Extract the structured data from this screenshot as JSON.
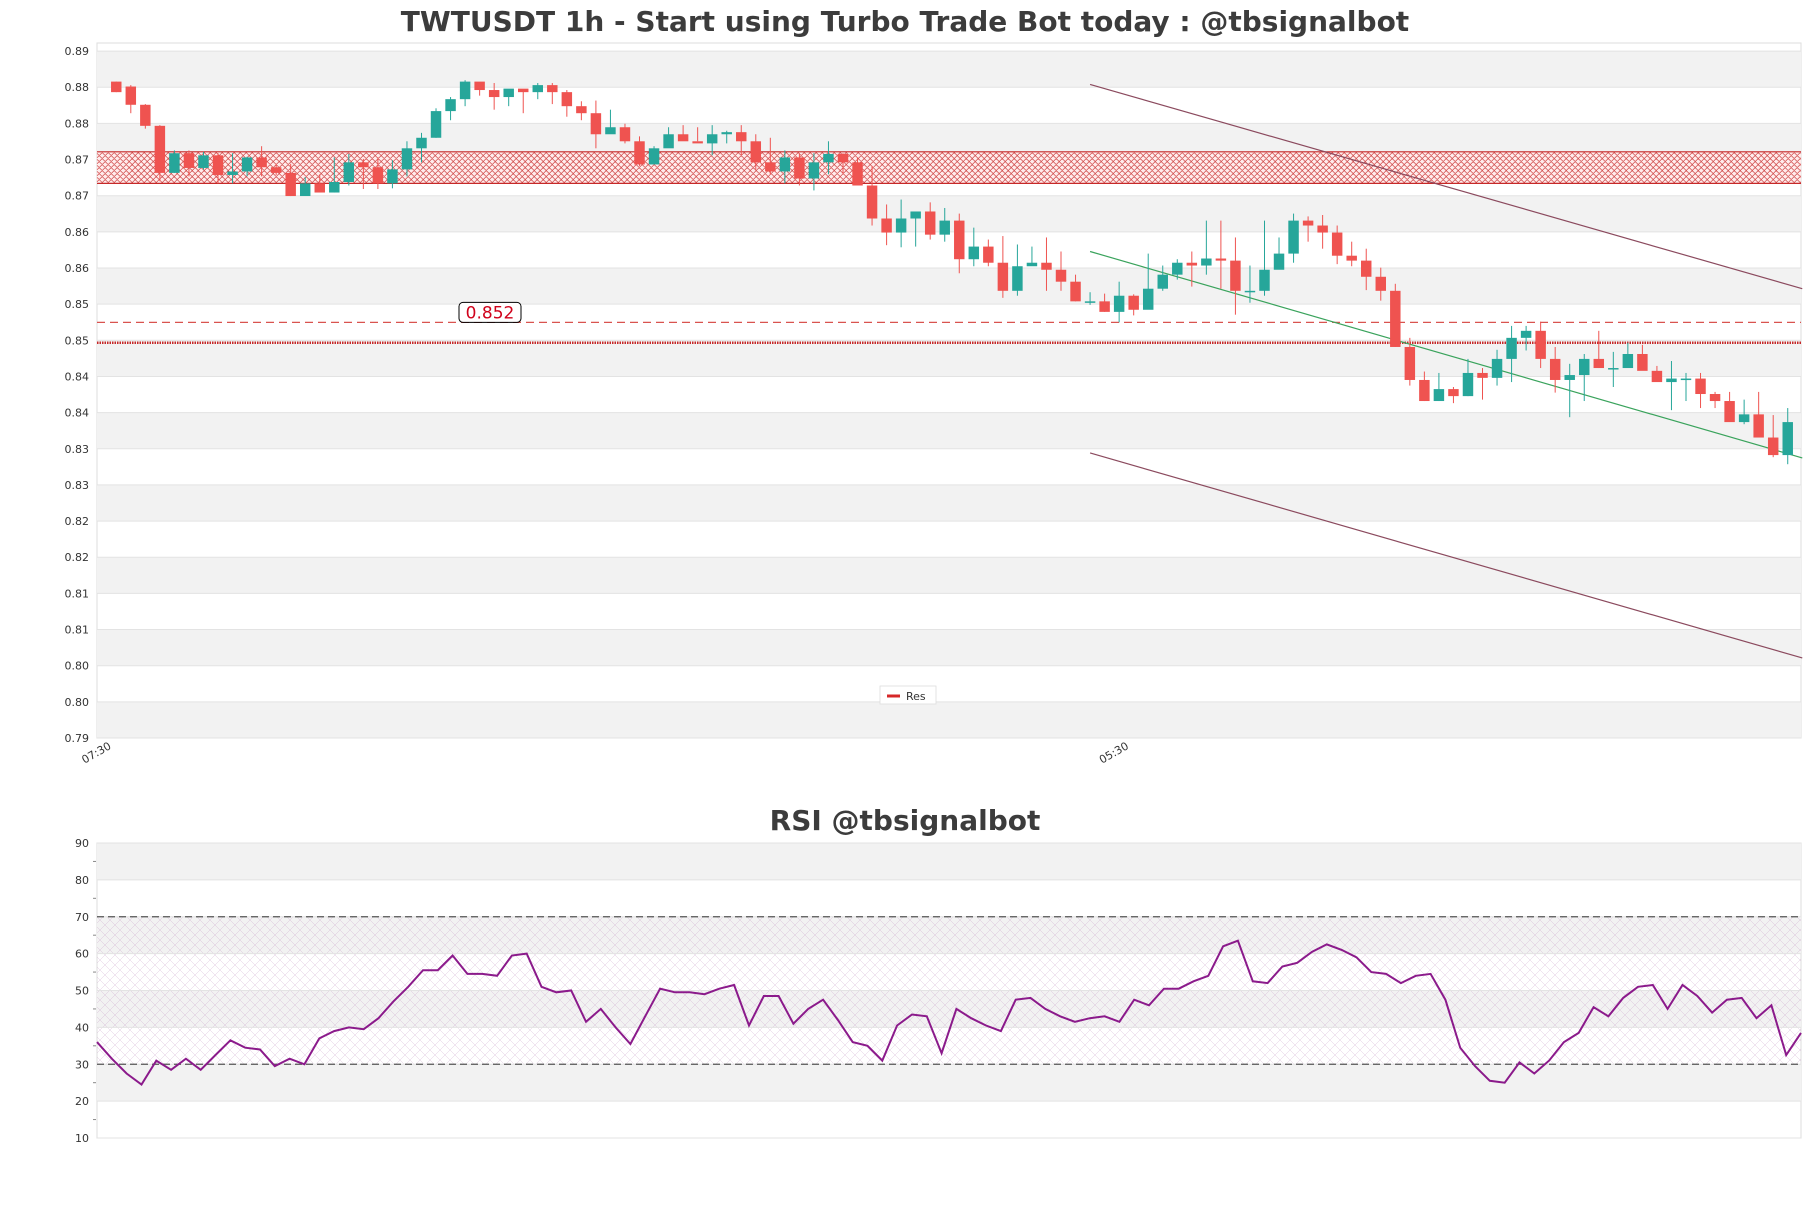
{
  "chart_data": [
    {
      "type": "candlestick",
      "title": "TWTUSDT 1h - Start using Turbo Trade Bot today : @tbsignalbot",
      "ylim": [
        0.7925,
        0.8915
      ],
      "y_tick_labels": [
        "0.79",
        "0.80",
        "0.80",
        "0.81",
        "0.81",
        "0.82",
        "0.82",
        "0.83",
        "0.83",
        "0.84",
        "0.84",
        "0.85",
        "0.85",
        "0.86",
        "0.86",
        "0.87",
        "0.87",
        "0.88",
        "0.88",
        "0.89"
      ],
      "x_tick_labels": [
        {
          "index": 0,
          "label": "07:30"
        },
        {
          "index": 70,
          "label": "05:30"
        }
      ],
      "legend": {
        "position": "bottom-center",
        "items": [
          {
            "label": "Res",
            "color": "#d62728"
          }
        ]
      },
      "colors": {
        "up": "#26a69a",
        "down": "#ef5350",
        "resistance": "#c62828",
        "channel": "#8b4a5e",
        "trend": "#3aa35c",
        "band": "#f2f2f2"
      },
      "resistance_zone": [
        0.8715,
        0.876
      ],
      "resistance_lines": [
        0.8488,
        0.8517
      ],
      "price_label": "0.852",
      "channel_upper": [
        [
          67,
          0.8856
        ],
        [
          116,
          0.8565
        ]
      ],
      "channel_lower": [
        [
          67,
          0.8331
        ],
        [
          116,
          0.8039
        ]
      ],
      "trend_line": [
        [
          67,
          0.8618
        ],
        [
          116,
          0.8324
        ]
      ],
      "candles": [
        [
          0.886,
          0.8845,
          0.886,
          0.8845
        ],
        [
          0.8853,
          0.8827,
          0.8855,
          0.8815
        ],
        [
          0.8827,
          0.8797,
          0.8828,
          0.8793
        ],
        [
          0.8797,
          0.873,
          0.8798,
          0.8718
        ],
        [
          0.873,
          0.8758,
          0.8762,
          0.873
        ],
        [
          0.8758,
          0.8737,
          0.8762,
          0.8725
        ],
        [
          0.8737,
          0.8755,
          0.876,
          0.8735
        ],
        [
          0.8755,
          0.8727,
          0.8758,
          0.8715
        ],
        [
          0.8727,
          0.8732,
          0.8758,
          0.8715
        ],
        [
          0.8732,
          0.8752,
          0.8753,
          0.8725
        ],
        [
          0.8752,
          0.8738,
          0.8768,
          0.8725
        ],
        [
          0.8738,
          0.873,
          0.8743,
          0.8727
        ],
        [
          0.873,
          0.8697,
          0.8743,
          0.8697
        ],
        [
          0.8697,
          0.8715,
          0.8724,
          0.8708
        ],
        [
          0.8715,
          0.8702,
          0.8728,
          0.8706
        ],
        [
          0.8702,
          0.8717,
          0.8752,
          0.8702
        ],
        [
          0.8717,
          0.8745,
          0.8757,
          0.8712
        ],
        [
          0.8745,
          0.8738,
          0.875,
          0.8707
        ],
        [
          0.8738,
          0.8715,
          0.8752,
          0.8707
        ],
        [
          0.8715,
          0.8735,
          0.8748,
          0.8708
        ],
        [
          0.8735,
          0.8765,
          0.8775,
          0.8725
        ],
        [
          0.8765,
          0.878,
          0.8787,
          0.8745
        ],
        [
          0.878,
          0.8818,
          0.8822,
          0.878
        ],
        [
          0.8818,
          0.8835,
          0.8838,
          0.8805
        ],
        [
          0.8835,
          0.886,
          0.8862,
          0.8825
        ],
        [
          0.886,
          0.8848,
          0.8858,
          0.884
        ],
        [
          0.8848,
          0.8838,
          0.8858,
          0.882
        ],
        [
          0.8838,
          0.885,
          0.8845,
          0.8825
        ],
        [
          0.885,
          0.8845,
          0.8848,
          0.8815
        ],
        [
          0.8845,
          0.8855,
          0.8858,
          0.8835
        ],
        [
          0.8855,
          0.8845,
          0.8858,
          0.8828
        ],
        [
          0.8845,
          0.8825,
          0.8848,
          0.881
        ],
        [
          0.8825,
          0.8815,
          0.8832,
          0.8805
        ],
        [
          0.8815,
          0.8785,
          0.8833,
          0.8765
        ],
        [
          0.8785,
          0.8795,
          0.882,
          0.8792
        ],
        [
          0.8795,
          0.8775,
          0.88,
          0.8772
        ],
        [
          0.8775,
          0.8742,
          0.8782,
          0.874
        ],
        [
          0.8742,
          0.8765,
          0.8768,
          0.8742
        ],
        [
          0.8765,
          0.8785,
          0.8795,
          0.8783
        ],
        [
          0.8785,
          0.8775,
          0.8798,
          0.8776
        ],
        [
          0.8775,
          0.8772,
          0.8795,
          0.8775
        ],
        [
          0.8772,
          0.8785,
          0.8798,
          0.8755
        ],
        [
          0.8785,
          0.8788,
          0.879,
          0.8772
        ],
        [
          0.8788,
          0.8775,
          0.8798,
          0.8755
        ],
        [
          0.8775,
          0.8745,
          0.8785,
          0.8735
        ],
        [
          0.8745,
          0.8732,
          0.878,
          0.8728
        ],
        [
          0.8732,
          0.8752,
          0.8762,
          0.8715
        ],
        [
          0.8752,
          0.8722,
          0.8758,
          0.8712
        ],
        [
          0.8722,
          0.8745,
          0.8758,
          0.8705
        ],
        [
          0.8745,
          0.8757,
          0.8775,
          0.8728
        ],
        [
          0.8757,
          0.8745,
          0.8758,
          0.8728
        ],
        [
          0.8745,
          0.8712,
          0.8752,
          0.8712
        ],
        [
          0.8712,
          0.8665,
          0.874,
          0.8655
        ],
        [
          0.8665,
          0.8645,
          0.8685,
          0.8627
        ],
        [
          0.8645,
          0.8665,
          0.8692,
          0.8624
        ],
        [
          0.8665,
          0.8675,
          0.8675,
          0.8625
        ],
        [
          0.8675,
          0.8642,
          0.8688,
          0.8635
        ],
        [
          0.8642,
          0.8662,
          0.868,
          0.8632
        ],
        [
          0.8662,
          0.8607,
          0.8672,
          0.8587
        ],
        [
          0.8607,
          0.8625,
          0.8652,
          0.8597
        ],
        [
          0.8625,
          0.8602,
          0.8635,
          0.8597
        ],
        [
          0.8602,
          0.8562,
          0.864,
          0.8552
        ],
        [
          0.8562,
          0.8597,
          0.8628,
          0.8555
        ],
        [
          0.8597,
          0.8602,
          0.8625,
          0.86
        ],
        [
          0.8602,
          0.8592,
          0.8638,
          0.8562
        ],
        [
          0.8592,
          0.8575,
          0.8618,
          0.8562
        ],
        [
          0.8575,
          0.8547,
          0.8585,
          0.8547
        ],
        [
          0.8547,
          0.8547,
          0.856,
          0.8542
        ],
        [
          0.8547,
          0.8532,
          0.8558,
          0.8532
        ],
        [
          0.8532,
          0.8555,
          0.8575,
          0.8517
        ],
        [
          0.8555,
          0.8535,
          0.8557,
          0.8527
        ],
        [
          0.8535,
          0.8565,
          0.8615,
          0.8552
        ],
        [
          0.8565,
          0.8585,
          0.8598,
          0.8562
        ],
        [
          0.8585,
          0.8602,
          0.8607,
          0.8578
        ],
        [
          0.8602,
          0.8598,
          0.8618,
          0.8568
        ],
        [
          0.8598,
          0.8608,
          0.8662,
          0.8585
        ],
        [
          0.8608,
          0.8605,
          0.8662,
          0.8565
        ],
        [
          0.8605,
          0.8562,
          0.8638,
          0.8528
        ],
        [
          0.8562,
          0.8562,
          0.8598,
          0.8545
        ],
        [
          0.8562,
          0.8592,
          0.8662,
          0.8555
        ],
        [
          0.8592,
          0.8615,
          0.8638,
          0.8598
        ],
        [
          0.8615,
          0.8662,
          0.8672,
          0.8602
        ],
        [
          0.8662,
          0.8655,
          0.8668,
          0.8632
        ],
        [
          0.8655,
          0.8645,
          0.867,
          0.8622
        ],
        [
          0.8645,
          0.8612,
          0.8655,
          0.86
        ],
        [
          0.8612,
          0.8605,
          0.8632,
          0.8597
        ],
        [
          0.8605,
          0.8582,
          0.8622,
          0.8563
        ],
        [
          0.8582,
          0.8562,
          0.8595,
          0.8548
        ],
        [
          0.8562,
          0.8482,
          0.8572,
          0.8482
        ],
        [
          0.8482,
          0.8435,
          0.8495,
          0.8427
        ],
        [
          0.8435,
          0.8405,
          0.8447,
          0.8405
        ],
        [
          0.8405,
          0.8422,
          0.8445,
          0.8405
        ],
        [
          0.8422,
          0.8412,
          0.8425,
          0.8402
        ],
        [
          0.8412,
          0.8445,
          0.8465,
          0.8412
        ],
        [
          0.8445,
          0.8438,
          0.8452,
          0.8407
        ],
        [
          0.8438,
          0.8465,
          0.8478,
          0.8427
        ],
        [
          0.8465,
          0.8495,
          0.8512,
          0.8432
        ],
        [
          0.8495,
          0.8505,
          0.8512,
          0.8477
        ],
        [
          0.8505,
          0.8465,
          0.8518,
          0.8452
        ],
        [
          0.8465,
          0.8435,
          0.8482,
          0.8417
        ],
        [
          0.8435,
          0.8442,
          0.8458,
          0.8382
        ],
        [
          0.8442,
          0.8465,
          0.8472,
          0.8405
        ],
        [
          0.8465,
          0.8452,
          0.8505,
          0.8452
        ],
        [
          0.8452,
          0.8452,
          0.8475,
          0.8425
        ],
        [
          0.8452,
          0.8472,
          0.8488,
          0.8455
        ],
        [
          0.8472,
          0.8448,
          0.8485,
          0.8452
        ],
        [
          0.8448,
          0.8432,
          0.8455,
          0.8433
        ],
        [
          0.8432,
          0.8437,
          0.8462,
          0.8392
        ],
        [
          0.8437,
          0.8437,
          0.8445,
          0.8405
        ],
        [
          0.8437,
          0.8415,
          0.8445,
          0.8395
        ],
        [
          0.8415,
          0.8405,
          0.8418,
          0.8395
        ],
        [
          0.8405,
          0.8375,
          0.8418,
          0.838
        ],
        [
          0.8375,
          0.8386,
          0.8407,
          0.8372
        ],
        [
          0.8386,
          0.8353,
          0.8418,
          0.8365
        ],
        [
          0.8353,
          0.8328,
          0.8385,
          0.8325
        ],
        [
          0.8328,
          0.8375,
          0.8395,
          0.8315
        ]
      ]
    },
    {
      "type": "line",
      "title": "RSI @tbsignalbot",
      "ylim": [
        10,
        90
      ],
      "y_tick_labels": [
        "10",
        "20",
        "30",
        "40",
        "50",
        "60",
        "70",
        "80",
        "90"
      ],
      "reference_lines": [
        30,
        70
      ],
      "color": "#8b1a8b",
      "values": [
        36,
        31.5,
        27.5,
        24.5,
        31,
        28.5,
        31.5,
        28.5,
        32.5,
        36.5,
        34.5,
        34,
        29.5,
        31.5,
        30,
        37,
        39,
        40,
        39.5,
        42.5,
        47,
        51,
        55.5,
        55.5,
        59.5,
        54.5,
        54.5,
        54,
        59.5,
        60,
        51,
        49.5,
        50,
        41.5,
        45,
        40,
        35.5,
        43,
        50.5,
        49.5,
        49.5,
        49,
        50.5,
        51.5,
        40.5,
        48.5,
        48.5,
        41,
        45,
        47.5,
        42,
        36,
        35,
        31,
        40.5,
        43.5,
        43,
        33,
        45,
        42.5,
        40.5,
        39,
        47.5,
        48,
        45,
        43,
        41.5,
        42.5,
        43,
        41.5,
        47.5,
        46,
        50.5,
        50.5,
        52.5,
        54,
        62,
        63.5,
        52.5,
        52,
        56.5,
        57.5,
        60.5,
        62.5,
        61,
        59,
        55,
        54.5,
        52,
        54,
        54.5,
        47.5,
        34.5,
        29.5,
        25.5,
        25,
        30.5,
        27.5,
        31,
        36,
        38.5,
        45.5,
        43,
        48,
        51,
        51.5,
        45,
        51.5,
        48.5,
        44,
        47.5,
        48,
        42.5,
        46,
        32.5,
        38.5
      ]
    }
  ]
}
